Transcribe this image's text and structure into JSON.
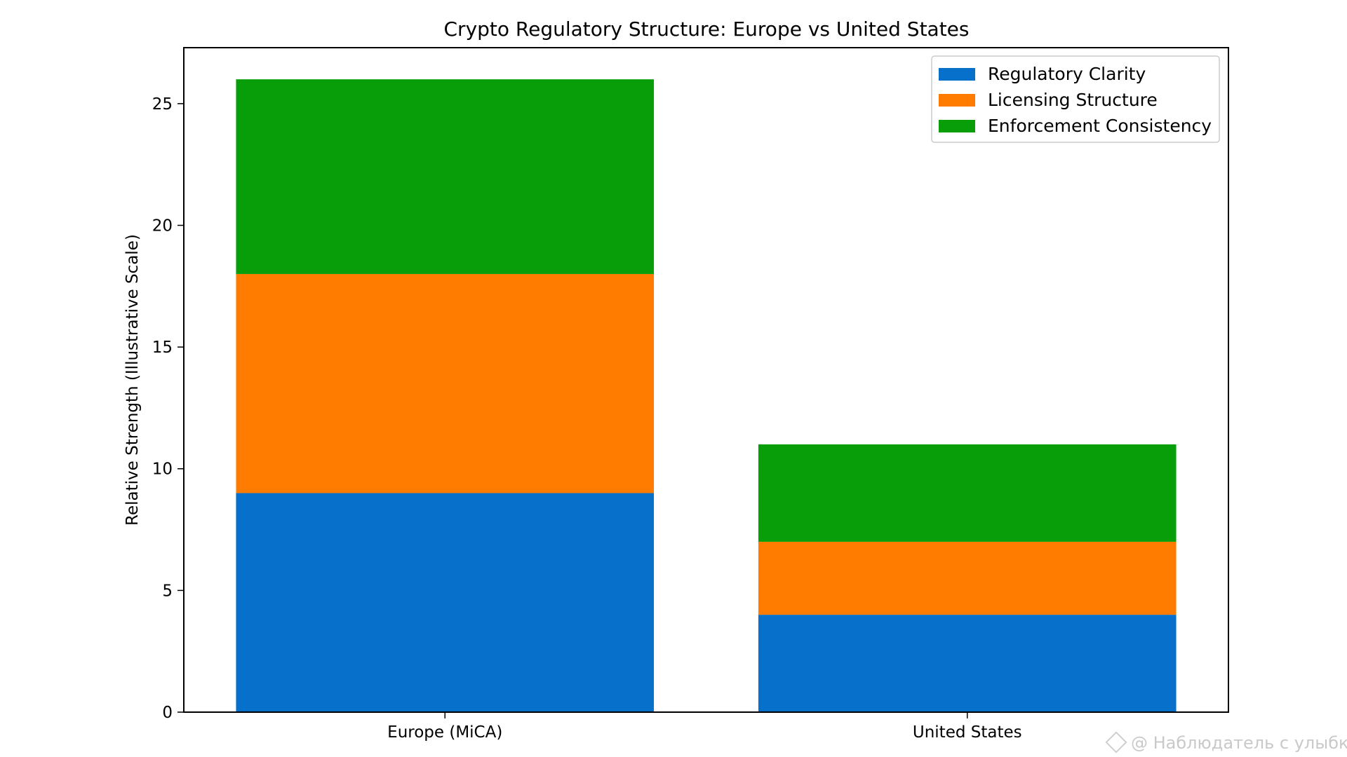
{
  "chart_data": {
    "type": "bar",
    "stacked": true,
    "title": "Crypto Regulatory Structure: Europe vs United States",
    "xlabel": "",
    "ylabel": "Relative Strength (Illustrative Scale)",
    "categories": [
      "Europe (MiCA)",
      "United States"
    ],
    "series": [
      {
        "name": "Regulatory Clarity",
        "values": [
          9,
          4
        ],
        "color": "#0770cb"
      },
      {
        "name": "Licensing Structure",
        "values": [
          9,
          3
        ],
        "color": "#ff7c00"
      },
      {
        "name": "Enforcement Consistency",
        "values": [
          8,
          4
        ],
        "color": "#089e09"
      }
    ],
    "ylim": [
      0,
      27.3
    ],
    "yticks": [
      0,
      5,
      10,
      15,
      20,
      25
    ],
    "grid": false,
    "legend_position": "top-right"
  },
  "watermark": {
    "text": "@ Наблюдатель с улыбко...",
    "icon": "watermark-diamond-icon"
  }
}
